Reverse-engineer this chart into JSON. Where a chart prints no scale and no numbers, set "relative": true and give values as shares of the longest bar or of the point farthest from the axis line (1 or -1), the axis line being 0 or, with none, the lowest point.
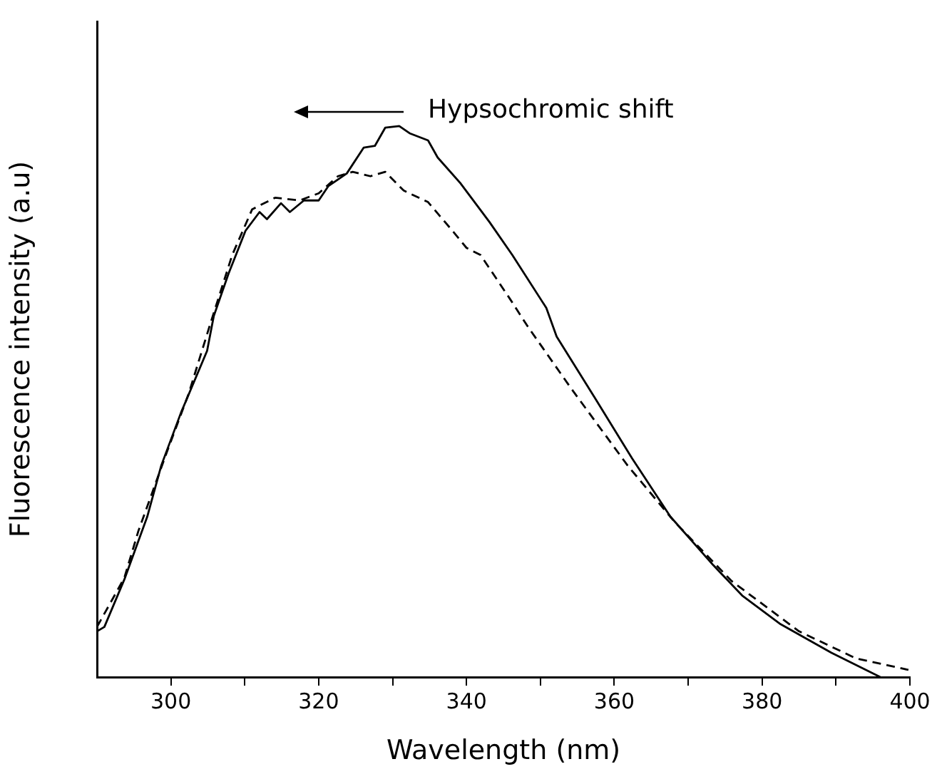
{
  "chart_data": {
    "type": "line",
    "relative": true,
    "xlabel": "Wavelength (nm)",
    "ylabel": "Fluorescence intensity (a.u)",
    "xlim": [
      290,
      400
    ],
    "xticks": [
      300,
      {
        "value": 310,
        "label": null
      },
      320,
      {
        "value": 330,
        "label": null
      },
      340,
      {
        "value": 350,
        "label": null
      },
      360,
      {
        "value": 370,
        "label": null
      },
      380,
      {
        "value": 390,
        "label": null
      },
      400
    ],
    "annotations": [
      "Hypsochromic shift"
    ],
    "grid": false,
    "legend": false,
    "marker": "none",
    "series": [
      {
        "color": "#000000",
        "line_style": "solid",
        "x": [
          290,
          291,
          293.7,
          296.8,
          298.7,
          301.4,
          304.9,
          305.8,
          307.8,
          310.1,
          312,
          313,
          314.9,
          316.1,
          318,
          320,
          321.3,
          323.8,
          326.1,
          327.6,
          329,
          330.9,
          332.3,
          334.8,
          336.1,
          339.2,
          343.1,
          346.2,
          350.8,
          352.2,
          357.4,
          362.4,
          367.6,
          373.4,
          377.3,
          382.5,
          389.4,
          396
        ],
        "values": [
          0.083,
          0.091,
          0.177,
          0.291,
          0.384,
          0.481,
          0.592,
          0.655,
          0.732,
          0.81,
          0.844,
          0.831,
          0.86,
          0.844,
          0.865,
          0.865,
          0.891,
          0.914,
          0.961,
          0.964,
          0.997,
          1,
          0.987,
          0.974,
          0.943,
          0.896,
          0.826,
          0.766,
          0.67,
          0.618,
          0.506,
          0.397,
          0.291,
          0.203,
          0.148,
          0.096,
          0.044,
          0
        ]
      },
      {
        "color": "#000000",
        "line_style": "dashed",
        "x": [
          290,
          293.7,
          295.6,
          299.5,
          302.4,
          305.4,
          308.3,
          311,
          314.1,
          317.4,
          320,
          322.6,
          324.6,
          327,
          329,
          331.5,
          334.8,
          338.1,
          340,
          341.9,
          345.8,
          348.3,
          354.1,
          361.8,
          368.2,
          375.9,
          385,
          392.7,
          399.8
        ],
        "values": [
          0.091,
          0.18,
          0.265,
          0.41,
          0.514,
          0.644,
          0.766,
          0.849,
          0.87,
          0.865,
          0.878,
          0.909,
          0.917,
          0.909,
          0.917,
          0.883,
          0.862,
          0.81,
          0.779,
          0.766,
          0.688,
          0.636,
          0.525,
          0.384,
          0.281,
          0.174,
          0.083,
          0.034,
          0.013
        ]
      }
    ]
  }
}
